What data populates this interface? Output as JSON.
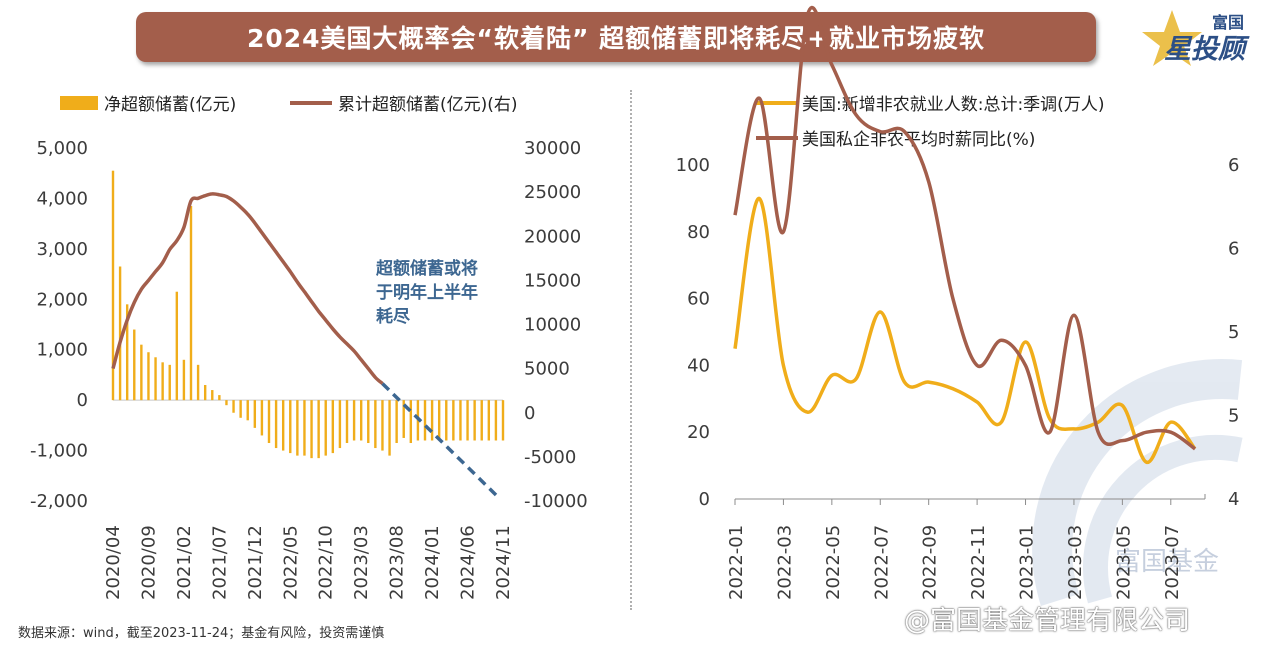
{
  "header": {
    "title": "2024美国大概率会“软着陆” 超额储蓄即将耗尽+就业市场疲软"
  },
  "logo": {
    "text_top": "富国",
    "text_main": "星投顾",
    "icon": "star-icon"
  },
  "footer": {
    "source": "数据来源：wind，截至2023-11-24；基金有风险，投资需谨慎"
  },
  "watermark": {
    "weibo": "@富国基金管理有限公司",
    "corner": "富国基金"
  },
  "colors": {
    "banner": "#a35e4b",
    "gold": "#f0ad1a",
    "brown": "#a35e4b",
    "forecast": "#3d6791"
  },
  "chart_data": [
    {
      "type": "bar",
      "left_axis_ticks": [
        "5,000",
        "4,000",
        "3,000",
        "2,000",
        "1,000",
        "0",
        "-1,000",
        "-2,000"
      ],
      "right_axis_ticks": [
        "30000",
        "25000",
        "20000",
        "15000",
        "10000",
        "5000",
        "0",
        "-5000",
        "-10000"
      ],
      "ylim": [
        -2000,
        5000
      ],
      "y2lim": [
        -10000,
        30000
      ],
      "x_tick_labels": [
        "2020/04",
        "2020/09",
        "2021/02",
        "2021/07",
        "2021/12",
        "2022/05",
        "2022/10",
        "2023/03",
        "2023/08",
        "2024/01",
        "2024/06",
        "2024/11"
      ],
      "annotation": [
        "超额储蓄或将",
        "于明年上半年",
        "耗尽"
      ],
      "series": [
        {
          "name": "净超额储蓄(亿元)",
          "axis": "left",
          "color": "#f0ad1a",
          "values": [
            4550,
            2650,
            1900,
            1400,
            1100,
            950,
            850,
            750,
            700,
            2150,
            800,
            3850,
            700,
            300,
            200,
            100,
            -100,
            -250,
            -350,
            -400,
            -550,
            -700,
            -850,
            -950,
            -1000,
            -1050,
            -1100,
            -1100,
            -1150,
            -1150,
            -1100,
            -1050,
            -950,
            -850,
            -800,
            -800,
            -850,
            -950,
            -1000,
            -1100,
            -850,
            -750,
            -850,
            -800,
            -800,
            -800,
            -800,
            -800,
            -800,
            -800,
            -800,
            -800,
            -800,
            -800,
            -800,
            -800
          ]
        },
        {
          "name": "累计超额储蓄(亿元)(右)",
          "axis": "right",
          "color": "#a35e4b",
          "values": [
            5000,
            8000,
            10500,
            12500,
            14000,
            15000,
            16000,
            17000,
            18500,
            19500,
            21000,
            24000,
            24300,
            24600,
            24800,
            24700,
            24500,
            24000,
            23300,
            22500,
            21500,
            20400,
            19300,
            18200,
            17100,
            16000,
            14800,
            13700,
            12600,
            11500,
            10500,
            9500,
            8600,
            7800,
            7000,
            6000,
            5000,
            4000,
            3300
          ]
        },
        {
          "name": "forecast",
          "axis": "right",
          "color": "#3d6791",
          "dashed": true,
          "values": [
            3300,
            2000,
            700,
            -600,
            -1900,
            -3200,
            -4500,
            -5800,
            -7100,
            -8400,
            -9700
          ]
        }
      ]
    },
    {
      "type": "line",
      "left_axis_ticks": [
        "100",
        "80",
        "60",
        "40",
        "20",
        "0"
      ],
      "right_axis_ticks": [
        "6",
        "6",
        "5",
        "5",
        "4"
      ],
      "ylim": [
        0,
        100
      ],
      "y2lim": [
        4,
        6
      ],
      "x_tick_labels": [
        "2022-01",
        "2022-03",
        "2022-05",
        "2022-07",
        "2022-09",
        "2022-11",
        "2023-01",
        "2023-03",
        "2023-05",
        "2023-07"
      ],
      "series": [
        {
          "name": "美国:新增非农就业人数:总计:季调(万人)",
          "axis": "left",
          "color": "#f0ad1a",
          "values": [
            45,
            90,
            40,
            26,
            37,
            36,
            56,
            35,
            35,
            33,
            29,
            23,
            47,
            24,
            21,
            23,
            28,
            11,
            23,
            15
          ]
        },
        {
          "name": "美国私企非农平均时薪同比(%)",
          "axis": "right",
          "color": "#a35e4b",
          "values": [
            5.7,
            6.4,
            5.6,
            6.9,
            6.6,
            6.3,
            6.2,
            6.2,
            5.9,
            5.2,
            4.8,
            4.95,
            4.8,
            4.4,
            5.1,
            4.4,
            4.35,
            4.4,
            4.4,
            4.3
          ]
        }
      ]
    }
  ]
}
